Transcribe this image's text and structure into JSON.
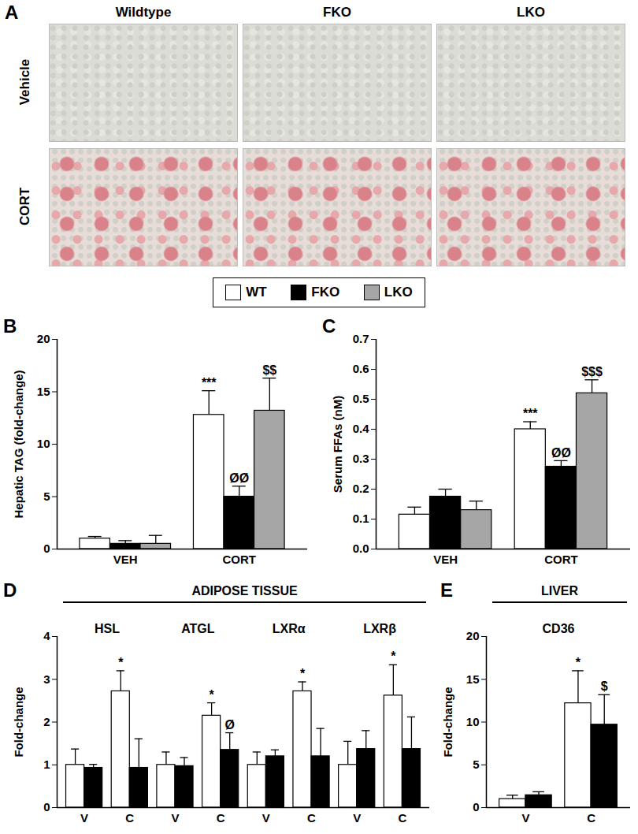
{
  "panel_a": {
    "panel_label": "A",
    "columns": [
      "Wildtype",
      "FKO",
      "LKO"
    ],
    "rows": [
      "Vehicle",
      "CORT"
    ]
  },
  "chart_data": [
    {
      "type": "bar",
      "panel_label": "B",
      "legend": "top",
      "y_label": "Hepatic TAG (fold-change)",
      "categories": [
        "VEH",
        "CORT"
      ],
      "ylim": [
        0,
        20
      ],
      "yticks": [
        0,
        5,
        10,
        15,
        20
      ],
      "series": [
        {
          "name": "WT",
          "color": "#ffffff",
          "values": [
            1.0,
            12.8
          ],
          "errors": [
            0.2,
            2.3
          ],
          "annotations": [
            null,
            "***"
          ]
        },
        {
          "name": "FKO",
          "color": "#000000",
          "values": [
            0.5,
            5.0
          ],
          "errors": [
            0.3,
            1.0
          ],
          "annotations": [
            null,
            "ØØ"
          ]
        },
        {
          "name": "LKO",
          "color": "#a6a6a6",
          "values": [
            0.5,
            13.2
          ],
          "errors": [
            0.8,
            3.1
          ],
          "annotations": [
            null,
            "$$"
          ]
        }
      ]
    },
    {
      "type": "bar",
      "panel_label": "C",
      "y_label": "Serum FFAs (nM)",
      "categories": [
        "VEH",
        "CORT"
      ],
      "ylim": [
        0,
        0.7
      ],
      "yticks": [
        {
          "value": 0,
          "label": "0.0"
        },
        0.1,
        0.2,
        0.3,
        0.4,
        0.5,
        0.6,
        0.7
      ],
      "series": [
        {
          "name": "WT",
          "color": "#ffffff",
          "values": [
            0.115,
            0.4
          ],
          "errors": [
            0.025,
            0.025
          ],
          "annotations": [
            null,
            "***"
          ]
        },
        {
          "name": "FKO",
          "color": "#000000",
          "values": [
            0.175,
            0.275
          ],
          "errors": [
            0.025,
            0.02
          ],
          "annotations": [
            null,
            "ØØ"
          ]
        },
        {
          "name": "LKO",
          "color": "#a6a6a6",
          "values": [
            0.13,
            0.52
          ],
          "errors": [
            0.03,
            0.045
          ],
          "annotations": [
            null,
            "$$$"
          ]
        }
      ]
    },
    {
      "type": "bar",
      "panel_label": "D",
      "title": "ADIPOSE TISSUE",
      "y_label": "Fold-change",
      "categories": [
        "V",
        "C",
        "V",
        "C",
        "V",
        "C",
        "V",
        "C"
      ],
      "groups": [
        "HSL",
        "HSL",
        "ATGL",
        "ATGL",
        "LXRα",
        "LXRα",
        "LXRβ",
        "LXRβ"
      ],
      "ylim": [
        0,
        4
      ],
      "yticks": [
        0,
        1,
        2,
        3,
        4
      ],
      "series": [
        {
          "name": "WT",
          "color": "#ffffff",
          "values": [
            1.0,
            2.72,
            1.0,
            2.15,
            1.0,
            2.72,
            1.0,
            2.62
          ],
          "errors": [
            0.37,
            0.48,
            0.3,
            0.3,
            0.3,
            0.22,
            0.55,
            0.72
          ],
          "annotations": [
            null,
            "*",
            null,
            "*",
            null,
            "*",
            null,
            "*"
          ]
        },
        {
          "name": "FKO",
          "color": "#000000",
          "values": [
            0.93,
            0.93,
            0.97,
            1.35,
            1.2,
            1.2,
            1.37,
            1.37
          ],
          "errors": [
            0.08,
            0.68,
            0.2,
            0.4,
            0.15,
            0.65,
            0.43,
            0.75
          ],
          "annotations": [
            null,
            null,
            null,
            "Ø",
            null,
            null,
            null,
            null
          ]
        }
      ]
    },
    {
      "type": "bar",
      "panel_label": "E",
      "title": "LIVER",
      "y_label": "Fold-change",
      "categories": [
        "V",
        "C"
      ],
      "groups": [
        "CD36",
        "CD36"
      ],
      "ylim": [
        0,
        20
      ],
      "yticks": [
        0,
        5,
        10,
        15,
        20
      ],
      "series": [
        {
          "name": "WT",
          "color": "#ffffff",
          "values": [
            1.0,
            12.2
          ],
          "errors": [
            0.45,
            3.8
          ],
          "annotations": [
            null,
            "*"
          ]
        },
        {
          "name": "FKO",
          "color": "#000000",
          "values": [
            1.45,
            9.7
          ],
          "errors": [
            0.4,
            3.5
          ],
          "annotations": [
            null,
            "$"
          ]
        }
      ]
    }
  ]
}
